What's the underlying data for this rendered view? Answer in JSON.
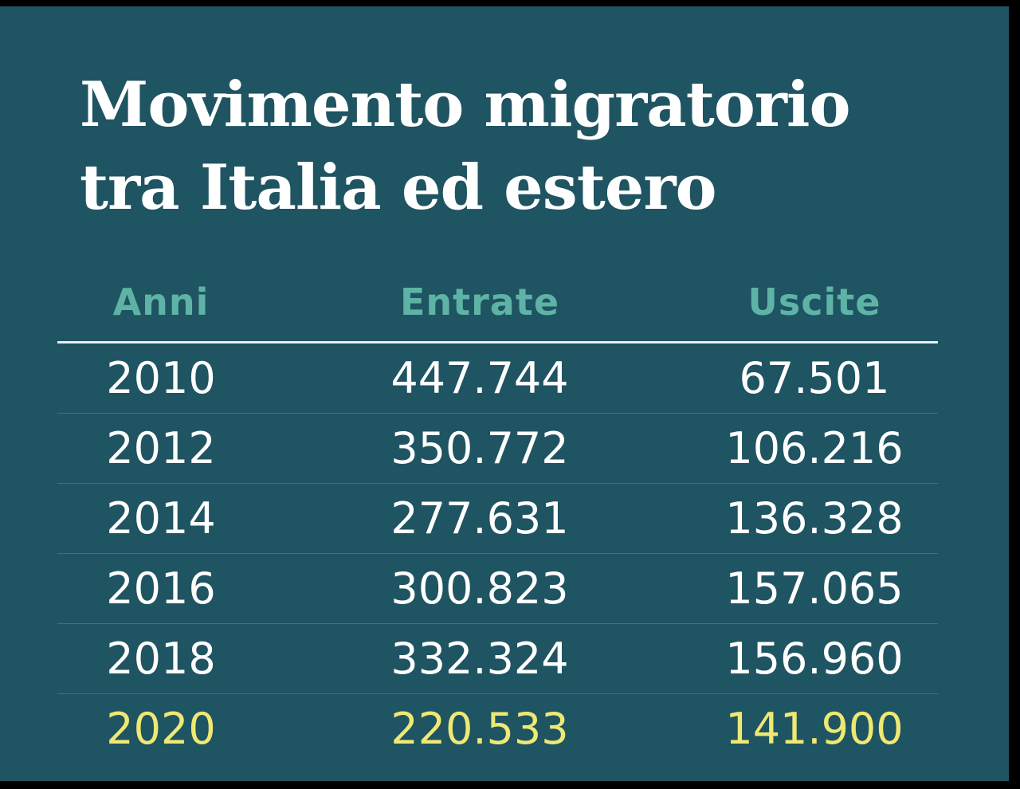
{
  "colors": {
    "background": "#1f5462",
    "header_text": "#5fb3a6",
    "body_text": "#ffffff",
    "highlight_text": "#efe973"
  },
  "title_lines": [
    "Movimento migratorio",
    "tra Italia ed estero"
  ],
  "chart_data": {
    "type": "table",
    "title": "Movimento migratorio tra Italia ed estero",
    "columns": [
      "Anni",
      "Entrate",
      "Uscite"
    ],
    "rows": [
      [
        "2010",
        "447.744",
        "67.501"
      ],
      [
        "2012",
        "350.772",
        "106.216"
      ],
      [
        "2014",
        "277.631",
        "136.328"
      ],
      [
        "2016",
        "300.823",
        "157.065"
      ],
      [
        "2018",
        "332.324",
        "156.960"
      ],
      [
        "2020",
        "220.533",
        "141.900"
      ]
    ],
    "highlighted_row": "2020"
  }
}
